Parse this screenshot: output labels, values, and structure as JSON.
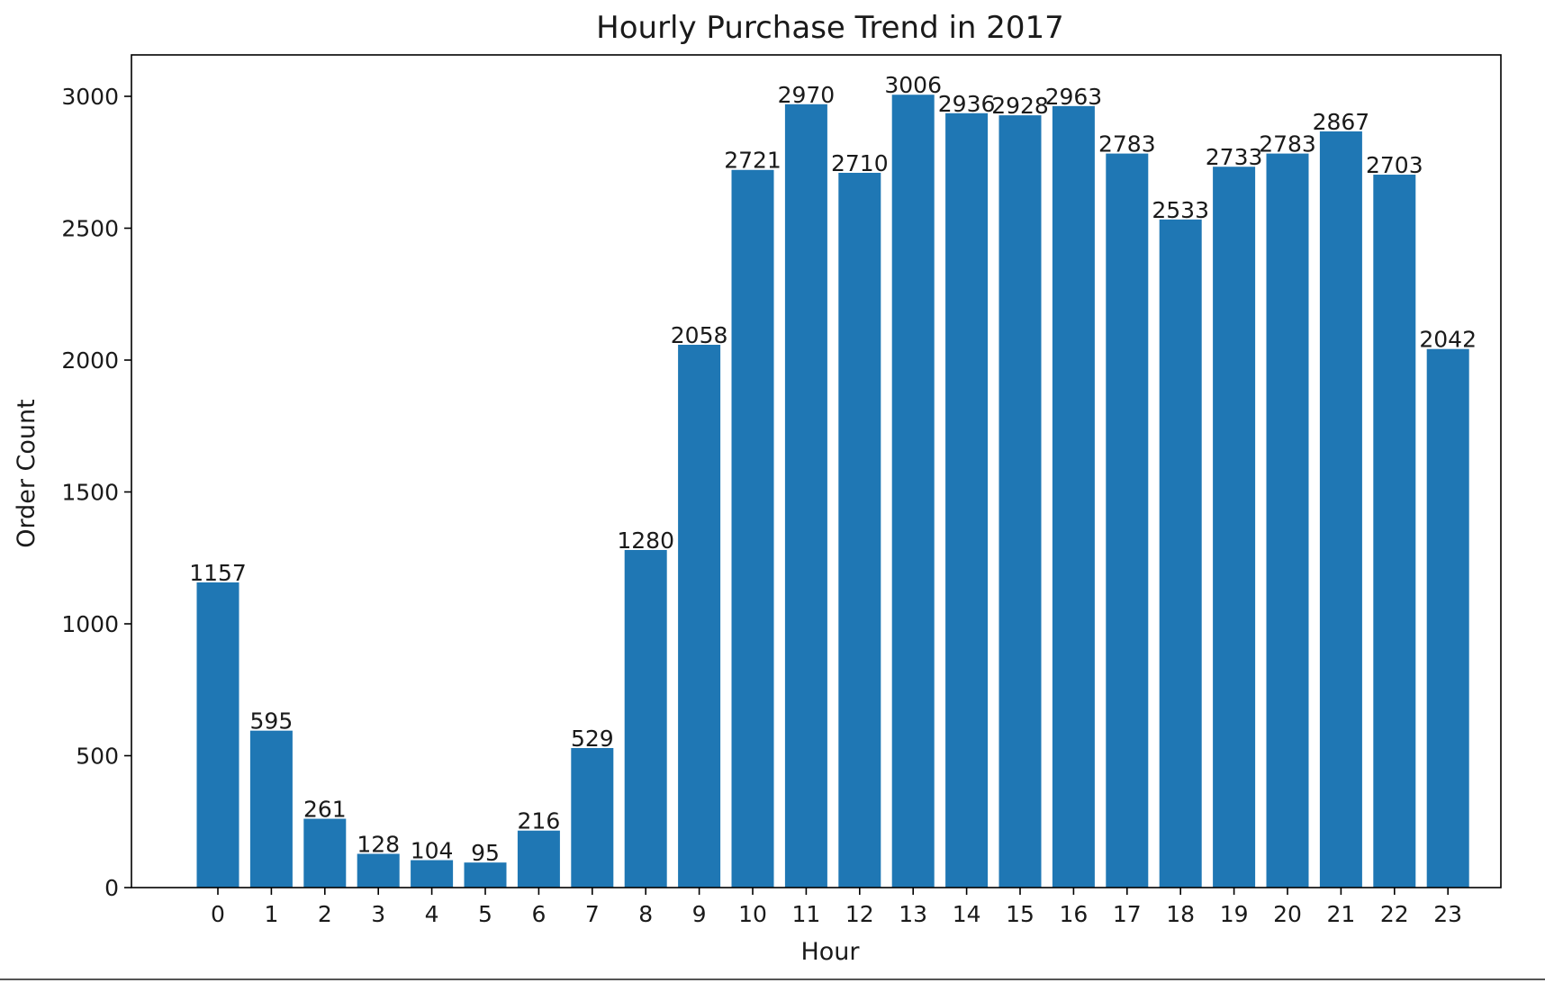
{
  "chart_data": {
    "type": "bar",
    "title": "Hourly Purchase Trend in 2017",
    "xlabel": "Hour",
    "ylabel": "Order Count",
    "categories": [
      "0",
      "1",
      "2",
      "3",
      "4",
      "5",
      "6",
      "7",
      "8",
      "9",
      "10",
      "11",
      "12",
      "13",
      "14",
      "15",
      "16",
      "17",
      "18",
      "19",
      "20",
      "21",
      "22",
      "23"
    ],
    "values": [
      1157,
      595,
      261,
      128,
      104,
      95,
      216,
      529,
      1280,
      2058,
      2721,
      2970,
      2710,
      3006,
      2936,
      2928,
      2963,
      2783,
      2533,
      2733,
      2783,
      2867,
      2703,
      2042
    ],
    "data_labels": [
      "1157",
      "595",
      "261",
      "128",
      "104",
      "95",
      "216",
      "529",
      "1280",
      "2058",
      "2721",
      "2970",
      "2710",
      "3006",
      "2936",
      "2928",
      "2963",
      "2783",
      "2533",
      "2733",
      "2783",
      "2867",
      "2703",
      "2042"
    ],
    "ylim": [
      0,
      3150
    ],
    "yticks": [
      0,
      500,
      1000,
      1500,
      2000,
      2500,
      3000
    ],
    "ytick_labels": [
      "0",
      "500",
      "1000",
      "1500",
      "2000",
      "2500",
      "3000"
    ],
    "bar_color": "#1f77b4",
    "grid": false,
    "legend": "none"
  }
}
